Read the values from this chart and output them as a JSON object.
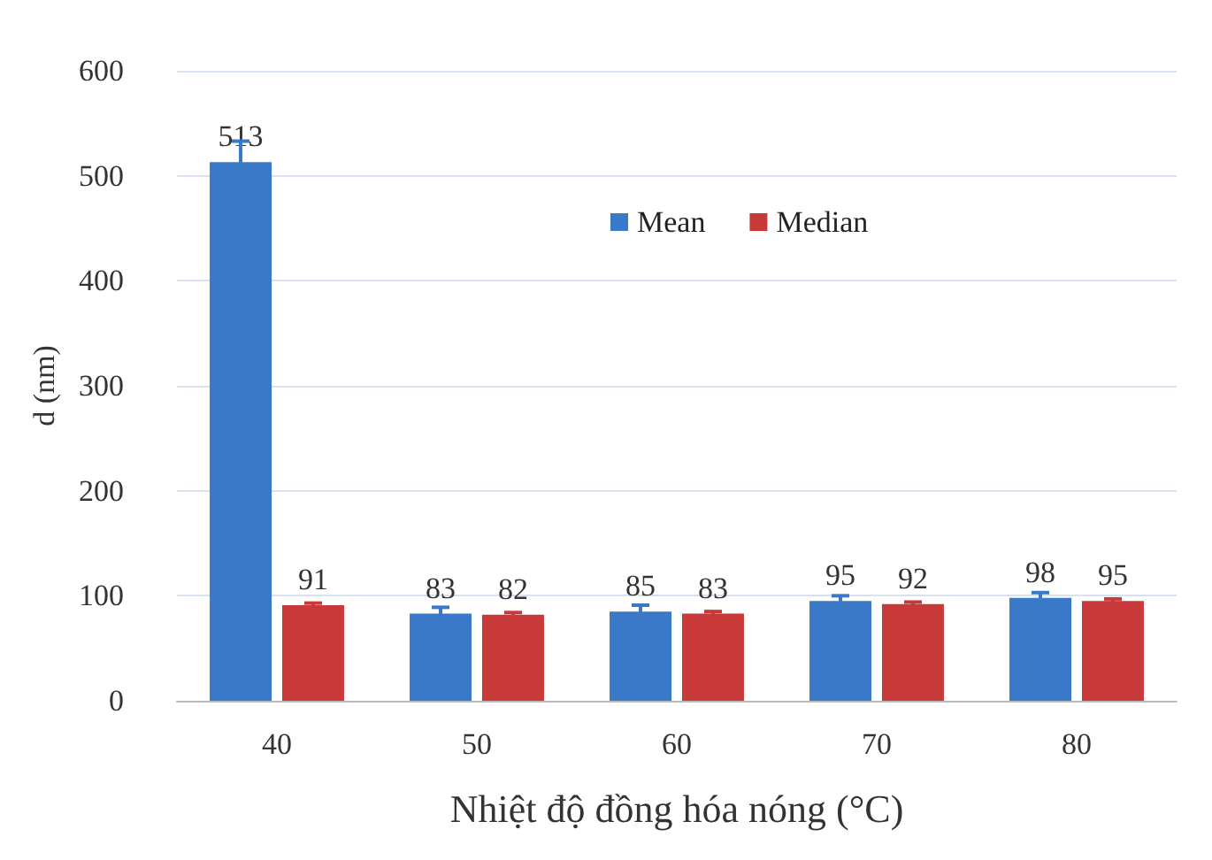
{
  "chart_data": {
    "type": "bar",
    "xlabel": "Nhiệt độ đồng hóa nóng (°C)",
    "ylabel": "d (nm)",
    "categories": [
      "40",
      "50",
      "60",
      "70",
      "80"
    ],
    "series": [
      {
        "name": "Mean",
        "color": "#3a78c8",
        "values": [
          513,
          83,
          85,
          95,
          98
        ],
        "errors": [
          20,
          6,
          6,
          5,
          5
        ]
      },
      {
        "name": "Median",
        "color": "#c83a3a",
        "values": [
          91,
          82,
          83,
          92,
          95
        ],
        "errors": [
          2,
          2,
          2,
          2,
          2
        ]
      }
    ],
    "ylim": [
      0,
      600
    ],
    "yticks": [
      0,
      100,
      200,
      300,
      400,
      500,
      600
    ],
    "grid": "y",
    "legend": "top",
    "data_labels": true
  }
}
